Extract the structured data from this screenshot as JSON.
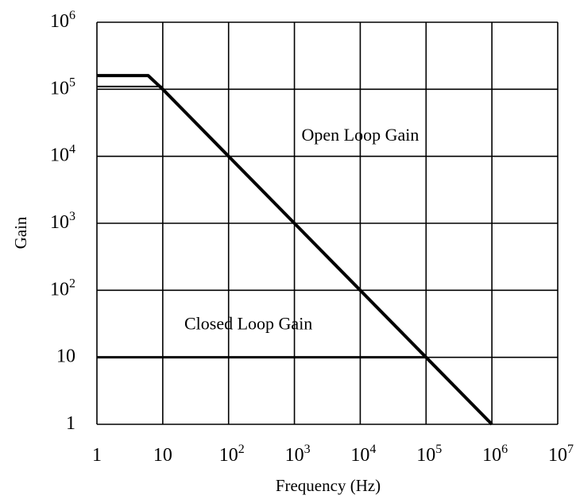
{
  "chart_data": {
    "type": "line",
    "title": "",
    "xlabel": "Frequency (Hz)",
    "ylabel": "Gain",
    "xscale": "log",
    "yscale": "log",
    "xlim": [
      1,
      10000000
    ],
    "ylim": [
      1,
      1000000
    ],
    "grid": true,
    "x_ticks": [
      {
        "base": "1",
        "exp": ""
      },
      {
        "base": "10",
        "exp": ""
      },
      {
        "base": "10",
        "exp": "2"
      },
      {
        "base": "10",
        "exp": "3"
      },
      {
        "base": "10",
        "exp": "4"
      },
      {
        "base": "10",
        "exp": "5"
      },
      {
        "base": "10",
        "exp": "6"
      },
      {
        "base": "10",
        "exp": "7"
      }
    ],
    "y_ticks": [
      {
        "base": "1",
        "exp": ""
      },
      {
        "base": "10",
        "exp": ""
      },
      {
        "base": "10",
        "exp": "2"
      },
      {
        "base": "10",
        "exp": "3"
      },
      {
        "base": "10",
        "exp": "4"
      },
      {
        "base": "10",
        "exp": "5"
      },
      {
        "base": "10",
        "exp": "6"
      }
    ],
    "series": [
      {
        "x": [
          1,
          6,
          10,
          100,
          1000,
          10000,
          100000,
          1000000
        ],
        "y": [
          160000,
          160000,
          100000,
          10000,
          1000,
          100,
          10,
          1
        ]
      },
      {
        "x": [
          1,
          100000
        ],
        "y": [
          10,
          10
        ]
      },
      {
        "x": [
          1,
          10
        ],
        "y": [
          110000,
          110000
        ]
      }
    ],
    "annotations": [
      {
        "text": "Open Loop Gain",
        "x": 10000,
        "y": 17000
      },
      {
        "text": "Closed Loop Gain",
        "x": 200,
        "y": 26
      }
    ]
  }
}
